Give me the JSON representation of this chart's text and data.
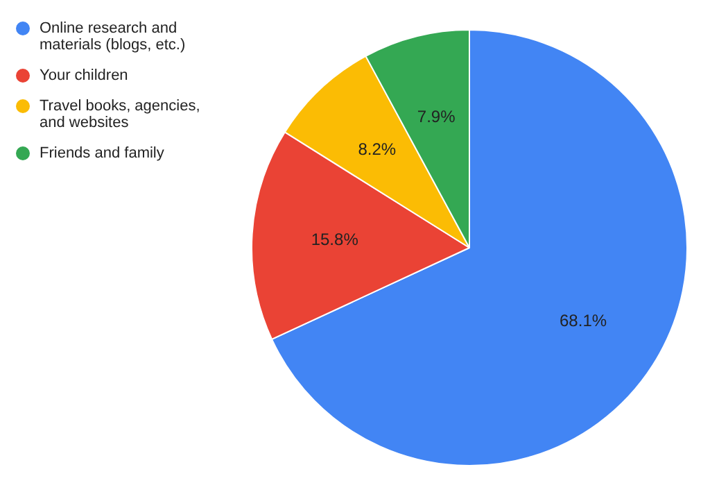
{
  "chart_data": {
    "type": "pie",
    "categories": [
      "Online research and materials (blogs, etc.)",
      "Your children",
      "Travel books, agencies, and websites",
      "Friends and family"
    ],
    "values": [
      68.1,
      15.8,
      8.2,
      7.9
    ],
    "colors": [
      "#4285f4",
      "#ea4335",
      "#fbbc04",
      "#34a853"
    ],
    "value_labels": [
      "68.1%",
      "15.8%",
      "8.2%",
      "7.9%"
    ],
    "legend": "left"
  }
}
